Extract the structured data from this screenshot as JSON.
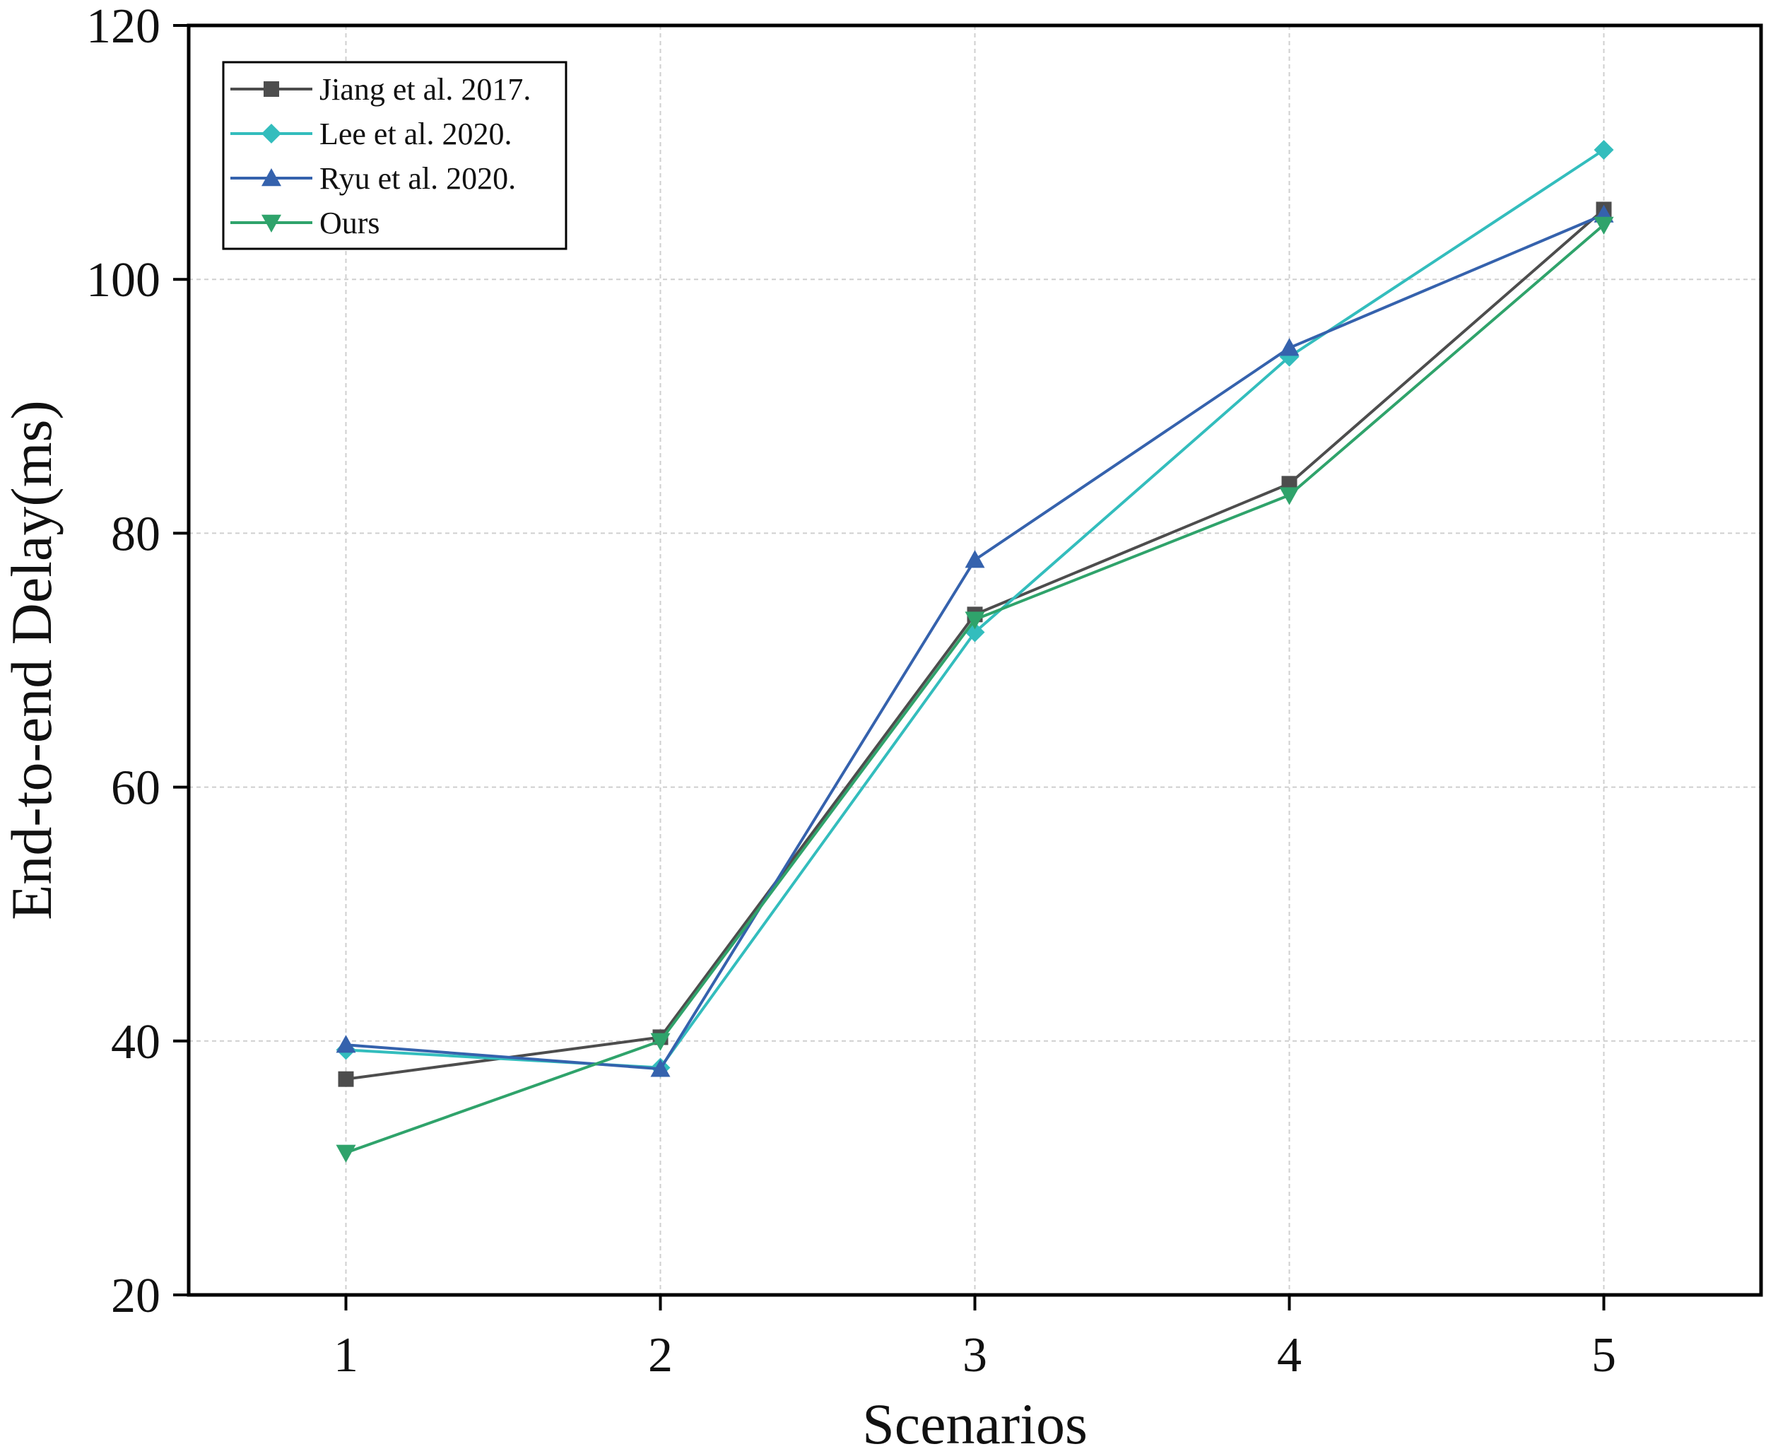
{
  "chart_data": {
    "type": "line",
    "title": "",
    "xlabel": "Scenarios",
    "ylabel": "End-to-end Delay(ms)",
    "x": [
      1,
      2,
      3,
      4,
      5
    ],
    "xlim": [
      0.5,
      5.5
    ],
    "ylim": [
      20,
      120
    ],
    "xticks": [
      1,
      2,
      3,
      4,
      5
    ],
    "yticks": [
      20,
      40,
      60,
      80,
      100,
      120
    ],
    "grid": true,
    "legend_position": "top-left",
    "series": [
      {
        "name": "Jiang et al. 2017.",
        "color": "#4d4d4d",
        "marker": "square",
        "values": [
          37.0,
          40.3,
          73.6,
          83.9,
          105.5
        ]
      },
      {
        "name": "Lee et al. 2020.",
        "color": "#33bdbd",
        "marker": "diamond",
        "values": [
          39.3,
          37.9,
          72.2,
          93.9,
          110.2
        ]
      },
      {
        "name": "Ryu et al. 2020.",
        "color": "#3562ad",
        "marker": "triangle-up",
        "values": [
          39.7,
          37.8,
          77.9,
          94.6,
          105.1
        ]
      },
      {
        "name": "Ours",
        "color": "#2fa36b",
        "marker": "triangle-down",
        "values": [
          31.2,
          40.0,
          73.2,
          83.0,
          104.3
        ]
      }
    ]
  }
}
